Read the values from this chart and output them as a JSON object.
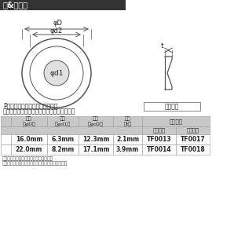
{
  "title": "プ&サイズ",
  "title_bg": "#333333",
  "title_color": "#ffffff",
  "bg_color": "#ffffff",
  "diagram_color": "#555555",
  "search_text_line1": "P内検索に商品番号を入力すると",
  "search_text_line2": "　お探しの商品に素早くアクセスできます。",
  "label_product_number": "商品番号",
  "col_header_1": "外径\n（φD）",
  "col_header_2": "円径\n（φd1）",
  "col_header_3": "枠径\n（φd2）",
  "col_header_4": "厚さ\n（t）",
  "col_header_5": "当店品番",
  "sub_header_silver": "シルバー",
  "sub_header_gold": "ゴールド",
  "row1": [
    "16.0mm",
    "6.3mm",
    "12.3mm",
    "2.1mm",
    "TF0013",
    "TF0017"
  ],
  "row2": [
    "22.0mm",
    "8.2mm",
    "17.1mm",
    "3.9mm",
    "TF0014",
    "TF0018"
  ],
  "note1": "により着色が異なる場合がございます。",
  "note2": "重量は平均値です。個体により誤差がございます。",
  "phi_D": "φD",
  "phi_d2": "φd2",
  "phi_d1": "φd1",
  "thickness_label": "t",
  "table_header_bg": "#cccccc",
  "table_row_bg": "#ffffff"
}
